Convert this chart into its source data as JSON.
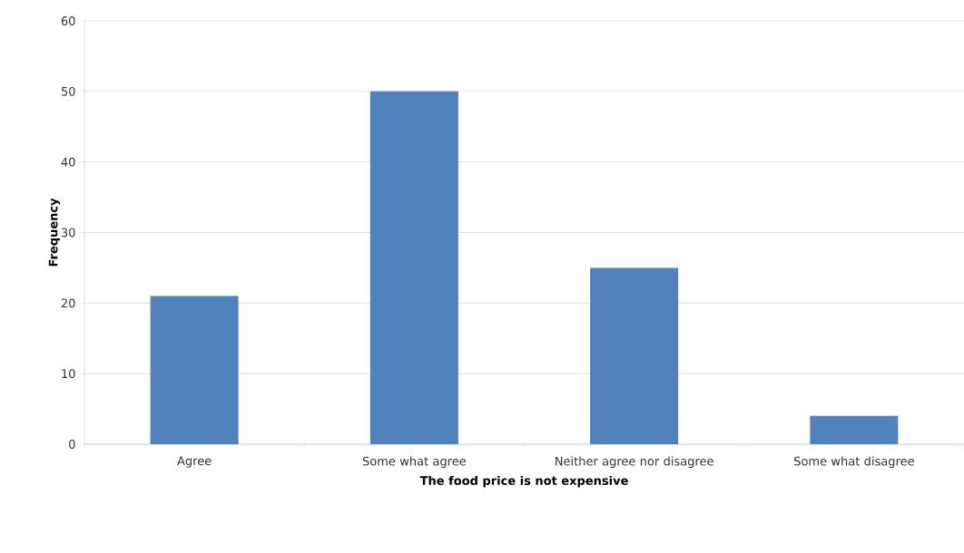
{
  "chart_data": {
    "type": "bar",
    "xlabel": "The food price is not expensive",
    "ylabel": "Frequency",
    "categories": [
      "Agree",
      "Some what agree",
      "Neither agree nor disagree",
      "Some what disagree"
    ],
    "values": [
      21,
      50,
      25,
      4
    ],
    "color": "#4f81bd",
    "ylim": [
      0,
      60
    ],
    "yticks": [
      0,
      10,
      20,
      30,
      40,
      50,
      60
    ],
    "grid": "y"
  }
}
